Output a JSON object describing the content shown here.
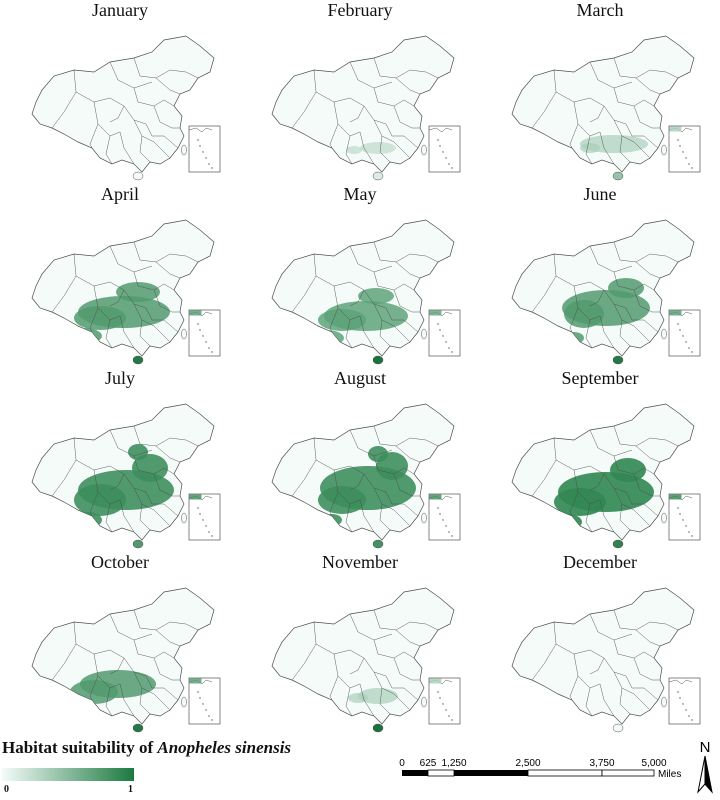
{
  "months": [
    {
      "name": "January",
      "level": 0.0,
      "hainan": 0.0,
      "blobs": []
    },
    {
      "name": "February",
      "level": 0.1,
      "hainan": 0.1,
      "blobs": [
        [
          124,
          116,
          18,
          6
        ],
        [
          100,
          118,
          8,
          4
        ]
      ]
    },
    {
      "name": "March",
      "level": 0.35,
      "hainan": 0.4,
      "blobs": [
        [
          120,
          112,
          34,
          9
        ],
        [
          96,
          116,
          10,
          5
        ]
      ]
    },
    {
      "name": "April",
      "level": 0.75,
      "hainan": 0.9,
      "blobs": [
        [
          110,
          96,
          46,
          16
        ],
        [
          86,
          102,
          26,
          12
        ],
        [
          70,
          120,
          18,
          8
        ],
        [
          124,
          76,
          22,
          10
        ]
      ]
    },
    {
      "name": "May",
      "level": 0.7,
      "hainan": 0.95,
      "blobs": [
        [
          112,
          100,
          42,
          15
        ],
        [
          88,
          104,
          24,
          11
        ],
        [
          72,
          122,
          18,
          8
        ],
        [
          122,
          80,
          18,
          8
        ]
      ]
    },
    {
      "name": "June",
      "level": 0.75,
      "hainan": 0.9,
      "blobs": [
        [
          112,
          92,
          44,
          18
        ],
        [
          90,
          98,
          20,
          14
        ],
        [
          132,
          72,
          18,
          10
        ],
        [
          80,
          122,
          10,
          6
        ]
      ]
    },
    {
      "name": "July",
      "level": 0.85,
      "hainan": 0.7,
      "blobs": [
        [
          112,
          90,
          48,
          20
        ],
        [
          86,
          100,
          26,
          16
        ],
        [
          136,
          68,
          18,
          14
        ],
        [
          124,
          52,
          10,
          8
        ],
        [
          74,
          120,
          14,
          8
        ]
      ]
    },
    {
      "name": "August",
      "level": 0.85,
      "hainan": 0.75,
      "blobs": [
        [
          114,
          88,
          48,
          22
        ],
        [
          88,
          100,
          24,
          14
        ],
        [
          138,
          66,
          16,
          14
        ],
        [
          124,
          54,
          10,
          8
        ],
        [
          78,
          120,
          10,
          6
        ]
      ]
    },
    {
      "name": "September",
      "level": 0.9,
      "hainan": 0.85,
      "blobs": [
        [
          112,
          92,
          48,
          20
        ],
        [
          86,
          102,
          26,
          14
        ],
        [
          134,
          70,
          18,
          12
        ],
        [
          74,
          122,
          14,
          8
        ]
      ]
    },
    {
      "name": "October",
      "level": 0.75,
      "hainan": 0.9,
      "blobs": [
        [
          104,
          100,
          38,
          14
        ],
        [
          80,
          108,
          24,
          12
        ],
        [
          60,
          122,
          16,
          7
        ]
      ]
    },
    {
      "name": "November",
      "level": 0.35,
      "hainan": 0.95,
      "blobs": [
        [
          124,
          112,
          20,
          8
        ],
        [
          104,
          114,
          10,
          5
        ]
      ]
    },
    {
      "name": "December",
      "level": 0.0,
      "hainan": 0.0,
      "blobs": []
    }
  ],
  "legend": {
    "title_prefix": "Habitat suitability of ",
    "title_species": "Anopheles sinensis",
    "min_label": "0",
    "max_label": "1",
    "color_low": "#f4fbf9",
    "color_high": "#1b7a3f"
  },
  "scale": {
    "ticks": [
      "0",
      "625",
      "1,250",
      "2,500",
      "3,750",
      "5,000"
    ],
    "unit": "Miles"
  },
  "north_label": "N",
  "colors": {
    "land": "#f4fbf9",
    "border": "#4d4d4d",
    "suitability": "#2e9a63"
  }
}
